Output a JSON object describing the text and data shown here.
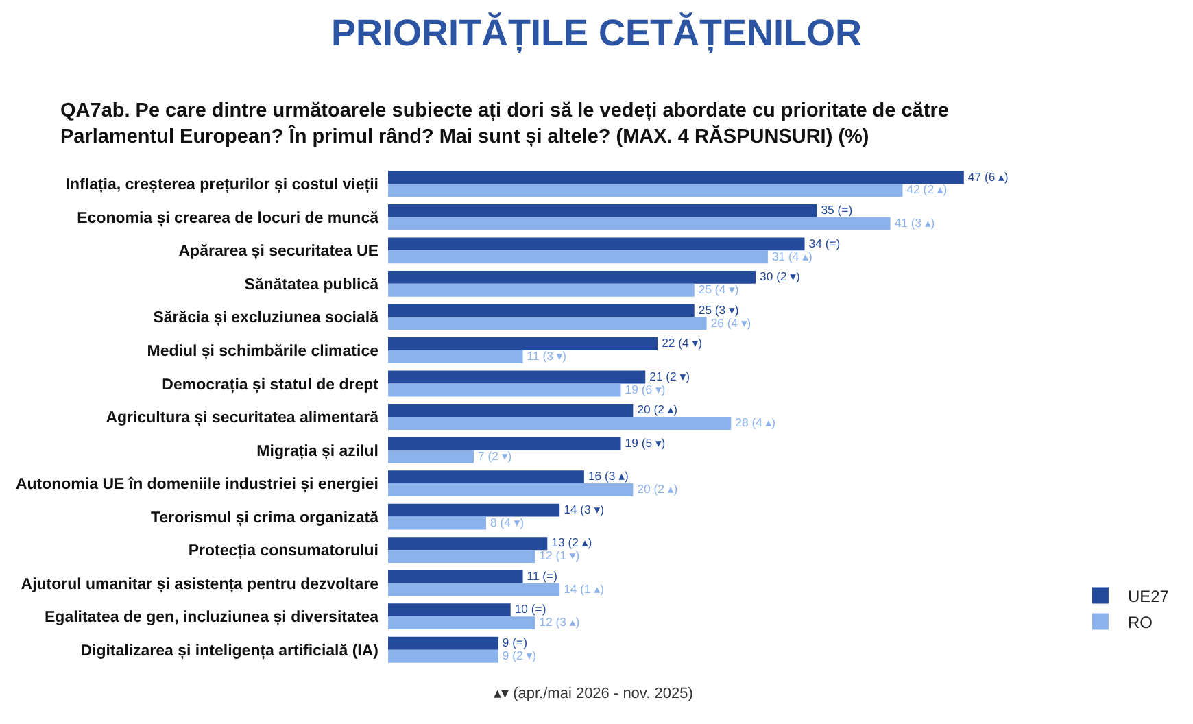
{
  "chart_data": {
    "type": "bar",
    "orientation": "horizontal",
    "title": "PRIORITĂȚILE CETĂȚENILOR",
    "subtitle": "QA7ab. Pe care dintre următoarele subiecte ați dori să le vedeți abordate cu prioritate de către Parlamentul European? În primul rând? Mai sunt și altele? (MAX. 4 RĂSPUNSURI) (%)",
    "categories": [
      "Inflația, creșterea prețurilor și costul vieții",
      "Economia și crearea de locuri de muncă",
      "Apărarea și securitatea UE",
      "Sănătatea publică",
      "Sărăcia și excluziunea socială",
      "Mediul și schimbările climatice",
      "Democrația și statul de drept",
      "Agricultura și securitatea alimentară",
      "Migrația și azilul",
      "Autonomia UE în domeniile industriei și energiei",
      "Terorismul și crima organizată",
      "Protecția consumatorului",
      "Ajutorul umanitar și asistența pentru dezvoltare",
      "Egalitatea de gen, incluziunea și diversitatea",
      "Digitalizarea și inteligența artificială (IA)"
    ],
    "series": [
      {
        "name": "UE27",
        "color": "#234a9b",
        "values": [
          47,
          35,
          34,
          30,
          25,
          22,
          21,
          20,
          19,
          16,
          14,
          13,
          11,
          10,
          9
        ],
        "value_labels": [
          "47 (6 ▴)",
          "35 (=)",
          "34 (=)",
          "30 (2 ▾)",
          "25 (3 ▾)",
          "22 (4 ▾)",
          "21 (2 ▾)",
          "20 (2 ▴)",
          "19 (5 ▾)",
          "16 (3 ▴)",
          "14 (3 ▾)",
          "13 (2 ▴)",
          "11 (=)",
          "10 (=)",
          "9 (=)"
        ]
      },
      {
        "name": "RO",
        "color": "#8cb2ec",
        "values": [
          42,
          41,
          31,
          25,
          26,
          11,
          19,
          28,
          7,
          20,
          8,
          12,
          14,
          12,
          9
        ],
        "value_labels": [
          "42 (2 ▴)",
          "41 (3 ▴)",
          "31 (4 ▴)",
          "25 (4 ▾)",
          "26 (4 ▾)",
          "11 (3 ▾)",
          "19 (6 ▾)",
          "28 (4 ▴)",
          "7 (2 ▾)",
          "20 (2 ▴)",
          "8 (4 ▾)",
          "12 (1 ▾)",
          "14 (1 ▴)",
          "12 (3 ▴)",
          "9 (2 ▾)"
        ]
      }
    ],
    "legend": "bottom right",
    "annotations": [
      "▴▾ (apr./mai 2026 - nov. 2025)"
    ]
  }
}
